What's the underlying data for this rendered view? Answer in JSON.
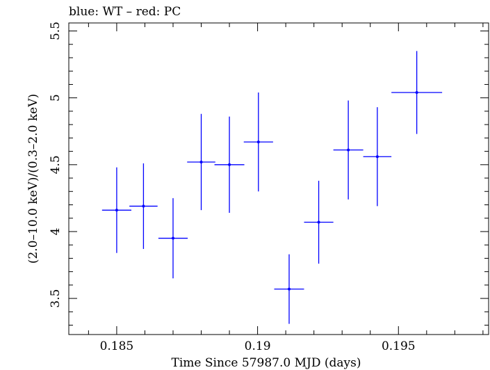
{
  "chart_data": {
    "type": "scatter",
    "title": "blue: WT – red: PC",
    "xlabel": "Time Since 57987.0 MJD (days)",
    "ylabel": "(2.0–10.0 keV)/(0.3–2.0 keV)",
    "xlim": [
      0.1833,
      0.1982
    ],
    "ylim": [
      3.23,
      5.56
    ],
    "x_ticks": [
      0.185,
      0.19,
      0.195
    ],
    "x_tick_labels": [
      "0.185",
      "0.19",
      "0.195"
    ],
    "y_ticks": [
      3.5,
      4,
      4.5,
      5,
      5.5
    ],
    "y_tick_labels": [
      "3.5",
      "4",
      "4.5",
      "5",
      "5.5"
    ],
    "grid": false,
    "legend": "none",
    "series": [
      {
        "color": "#0000ff",
        "points": [
          {
            "x": 0.185,
            "xerr": 0.00052,
            "y": 4.16,
            "yerr": 0.32
          },
          {
            "x": 0.18595,
            "xerr": 0.0005,
            "y": 4.19,
            "yerr": 0.32
          },
          {
            "x": 0.187,
            "xerr": 0.00052,
            "y": 3.95,
            "yerr": 0.3
          },
          {
            "x": 0.188,
            "xerr": 0.0005,
            "y": 4.52,
            "yerr": 0.36
          },
          {
            "x": 0.189,
            "xerr": 0.00053,
            "y": 4.5,
            "yerr": 0.36
          },
          {
            "x": 0.19003,
            "xerr": 0.00052,
            "y": 4.67,
            "yerr": 0.37
          },
          {
            "x": 0.19112,
            "xerr": 0.00053,
            "y": 3.57,
            "yerr": 0.26
          },
          {
            "x": 0.19217,
            "xerr": 0.00052,
            "y": 4.07,
            "yerr": 0.31
          },
          {
            "x": 0.19322,
            "xerr": 0.00053,
            "y": 4.61,
            "yerr": 0.37
          },
          {
            "x": 0.19425,
            "xerr": 0.0005,
            "y": 4.56,
            "yerr": 0.37
          },
          {
            "x": 0.19565,
            "xerr": 0.0009,
            "y": 5.04,
            "yerr": 0.31
          }
        ]
      }
    ]
  }
}
